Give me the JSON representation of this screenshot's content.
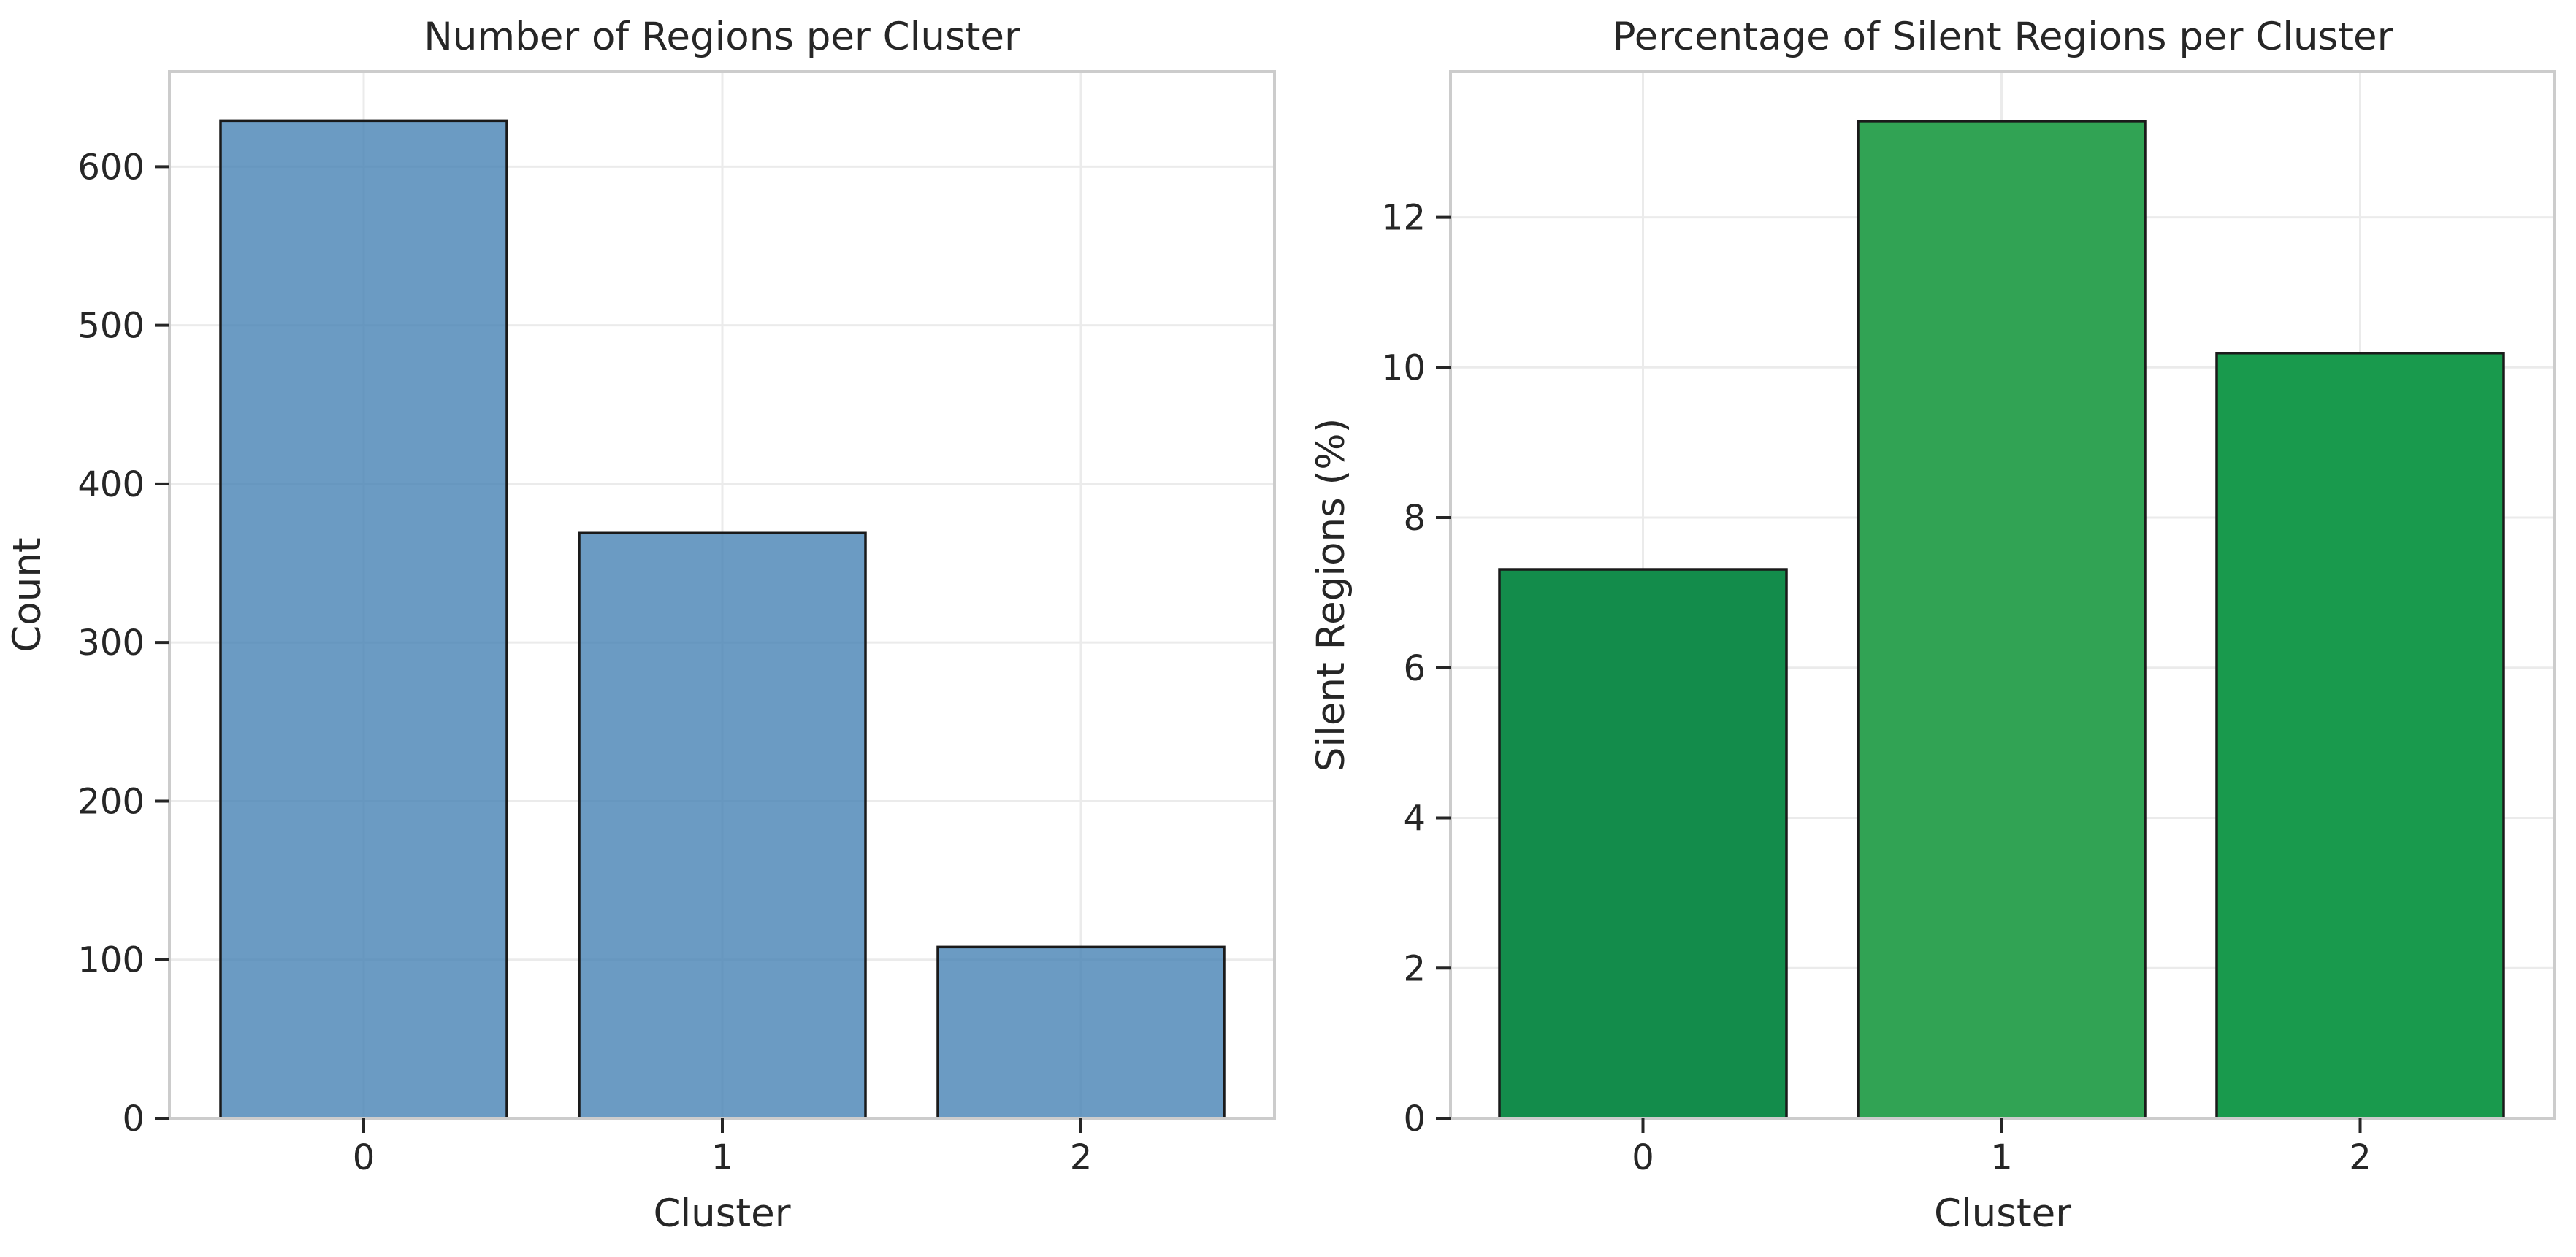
{
  "chart_data": [
    {
      "type": "bar",
      "title": "Number of Regions per Cluster",
      "xlabel": "Cluster",
      "ylabel": "Count",
      "categories": [
        "0",
        "1",
        "2"
      ],
      "values": [
        629,
        369,
        108
      ],
      "ylim": [
        0,
        660
      ],
      "yticks": [
        0,
        100,
        200,
        300,
        400,
        500,
        600
      ],
      "ytick_labels": [
        "0",
        "100",
        "200",
        "300",
        "400",
        "500",
        "600"
      ],
      "bar_colors": [
        "#4682b4",
        "#4682b4",
        "#4682b4"
      ],
      "bar_opacity": 0.8,
      "grid": true
    },
    {
      "type": "bar",
      "title": "Percentage of Silent Regions per Cluster",
      "xlabel": "Cluster",
      "ylabel": "Silent Regions (%)",
      "categories": [
        "0",
        "1",
        "2"
      ],
      "values": [
        7.31,
        13.28,
        10.19
      ],
      "ylim": [
        0,
        13.94
      ],
      "yticks": [
        0,
        2,
        4,
        6,
        8,
        10,
        12
      ],
      "ytick_labels": [
        "0",
        "2",
        "4",
        "6",
        "8",
        "10",
        "12"
      ],
      "bar_colors": [
        "#138c4b",
        "#31a354",
        "#199a4d"
      ],
      "bar_opacity": 1,
      "grid": true
    }
  ]
}
